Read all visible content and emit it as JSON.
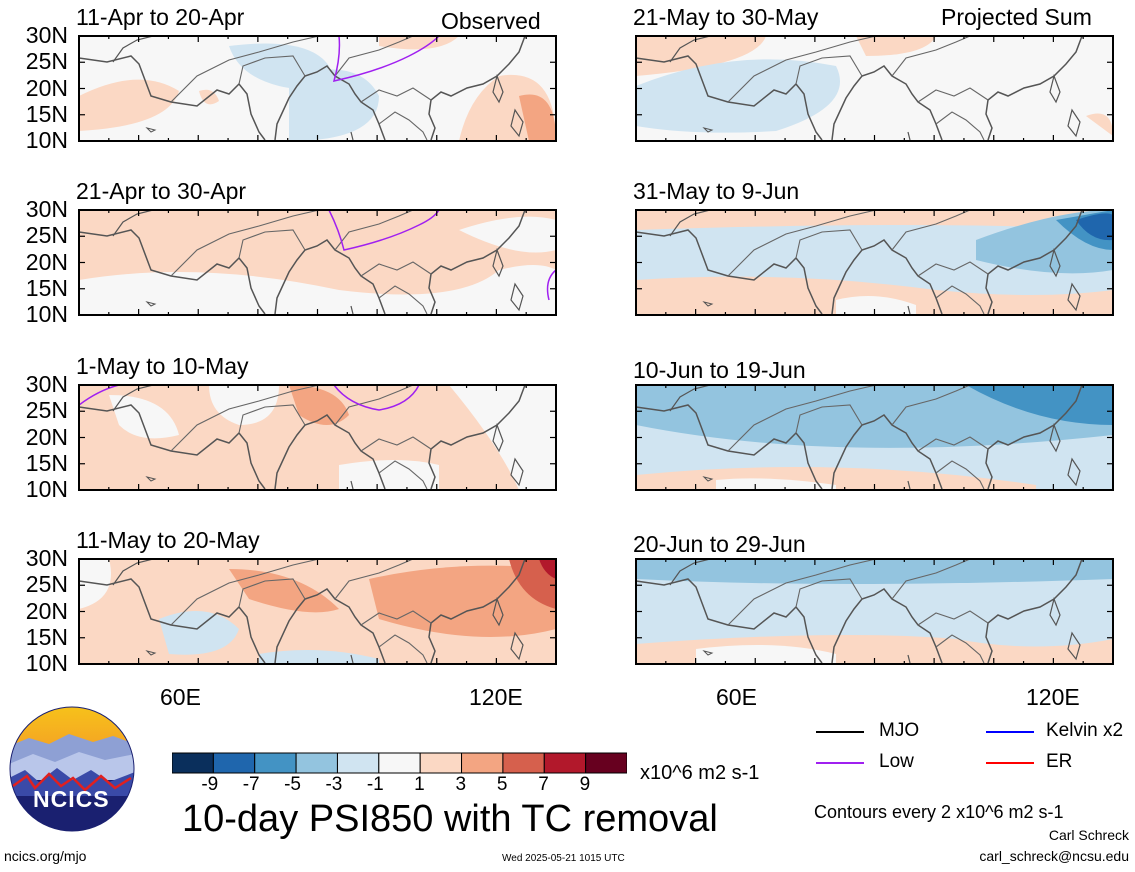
{
  "panels": {
    "left": [
      {
        "title": "11-Apr to 20-Apr",
        "tag": "Observed"
      },
      {
        "title": "21-Apr to 30-Apr",
        "tag": ""
      },
      {
        "title": "1-May to 10-May",
        "tag": ""
      },
      {
        "title": "11-May to 20-May",
        "tag": ""
      }
    ],
    "right": [
      {
        "title": "21-May to 30-May",
        "tag": "Projected Sum"
      },
      {
        "title": "31-May to 9-Jun",
        "tag": ""
      },
      {
        "title": "10-Jun to 19-Jun",
        "tag": ""
      },
      {
        "title": "20-Jun to 29-Jun",
        "tag": ""
      }
    ]
  },
  "lat_ticks": [
    "30N",
    "25N",
    "20N",
    "15N",
    "10N"
  ],
  "lon_ticks": [
    "60E",
    "120E"
  ],
  "colorbar": {
    "labels": [
      "-9",
      "-7",
      "-5",
      "-3",
      "-1",
      "1",
      "3",
      "5",
      "7",
      "9"
    ],
    "units": "x10^6 m2 s-1",
    "colors": [
      "#0a2f5c",
      "#1f66ad",
      "#4393c4",
      "#93c4df",
      "#d0e4f1",
      "#f7f7f7",
      "#fbd8c4",
      "#f3a582",
      "#d6604d",
      "#b2182b",
      "#67001f"
    ]
  },
  "main_title": "10-day PSI850 with TC removal",
  "legend": {
    "items": [
      {
        "label": "MJO",
        "color": "#000000"
      },
      {
        "label": "Kelvin x2",
        "color": "#0000ff"
      },
      {
        "label": "Low",
        "color": "#a020f0"
      },
      {
        "label": "ER",
        "color": "#ff0000"
      }
    ],
    "contours_note": "Contours every 2 x10^6 m2 s-1"
  },
  "logo": {
    "text": "NCICS"
  },
  "footer": {
    "left": "ncics.org/mjo",
    "center": "Wed 2025-05-21 1015 UTC",
    "author": "Carl Schreck",
    "email": "carl_schreck@ncsu.edu"
  }
}
